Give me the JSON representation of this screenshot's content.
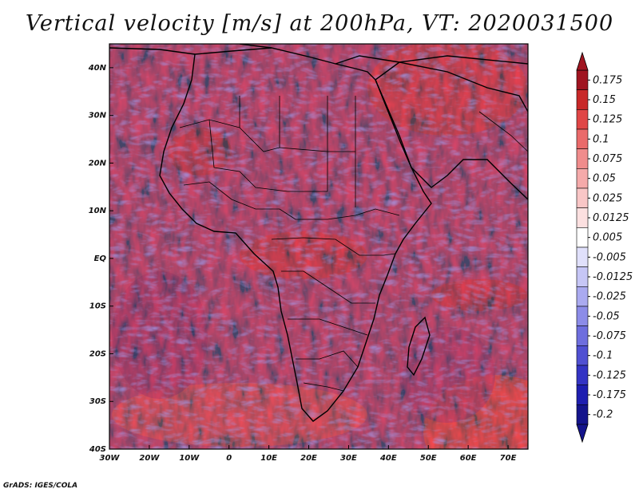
{
  "title": "Vertical velocity [m/s] at 200hPa, VT: 2020031500",
  "credit": "GrADS: IGES/COLA",
  "map": {
    "region": "Africa",
    "lon_range": [
      -30,
      75
    ],
    "lat_range": [
      -40,
      45
    ],
    "lon_ticks": [
      "30W",
      "20W",
      "10W",
      "0",
      "10E",
      "20E",
      "30E",
      "40E",
      "50E",
      "60E",
      "70E"
    ],
    "lat_ticks": [
      "40N",
      "30N",
      "20N",
      "10N",
      "EQ",
      "10S",
      "20S",
      "30S",
      "40S"
    ],
    "coastline_color": "#000000"
  },
  "colorbar": {
    "orientation": "vertical",
    "labels": [
      "0.175",
      "0.15",
      "0.125",
      "0.1",
      "0.075",
      "0.05",
      "0.025",
      "0.0125",
      "0.005",
      "-0.005",
      "-0.0125",
      "-0.025",
      "-0.05",
      "-0.075",
      "-0.1",
      "-0.125",
      "-0.175",
      "-0.2"
    ],
    "colors": [
      "#a01420",
      "#c82828",
      "#e04646",
      "#ea6a6a",
      "#f08c8c",
      "#f5aaaa",
      "#f9c6c6",
      "#fce0e0",
      "#ffffff",
      "#e0e0fb",
      "#c6c6f6",
      "#aaaaf0",
      "#8c8ce8",
      "#6e6ede",
      "#5050d2",
      "#3434c4",
      "#1e1eb0",
      "#14148c"
    ]
  }
}
